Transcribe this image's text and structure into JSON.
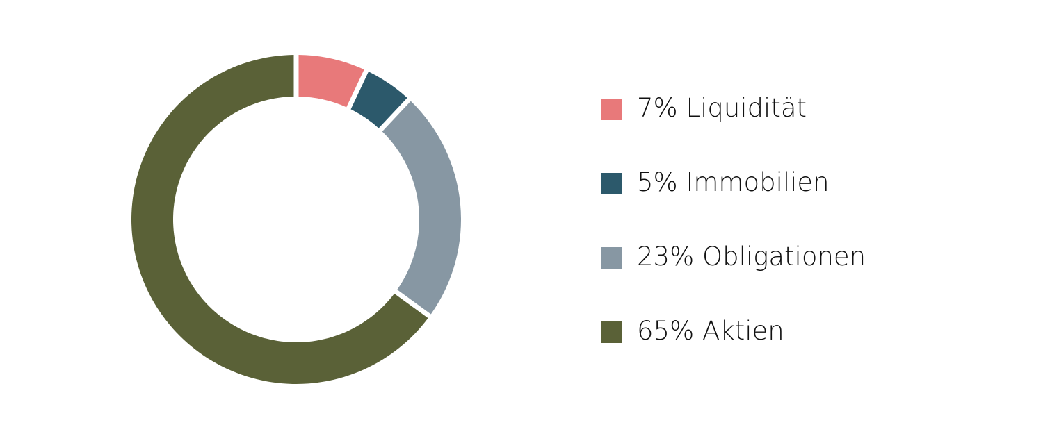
{
  "chart_data": {
    "type": "pie",
    "variant": "donut",
    "legend_placement": "right",
    "slices": [
      {
        "label": "7% Liquidität",
        "value": 7,
        "color": "#e8797a"
      },
      {
        "label": "5% Immobilien",
        "value": 5,
        "color": "#2c596b"
      },
      {
        "label": "23% Obligationen",
        "value": 23,
        "color": "#8797a3"
      },
      {
        "label": "65% Aktien",
        "value": 65,
        "color": "#5a6137"
      }
    ]
  }
}
